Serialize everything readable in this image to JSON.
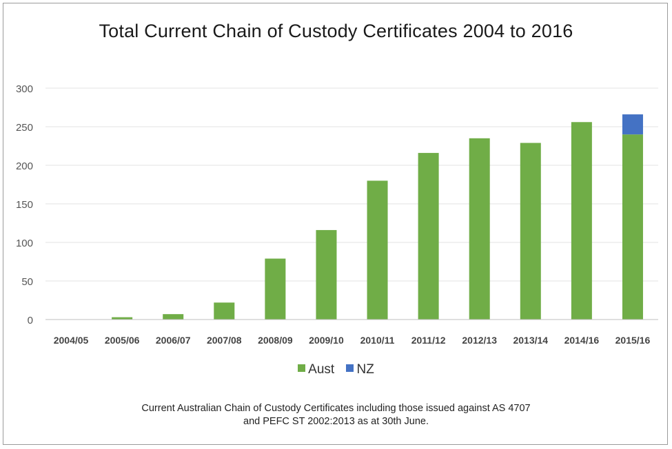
{
  "chart_data": {
    "type": "bar",
    "stacked": true,
    "title": "Total Current Chain of Custody Certificates 2004 to 2016",
    "categories": [
      "2004/05",
      "2005/06",
      "2006/07",
      "2007/08",
      "2008/09",
      "2009/10",
      "2010/11",
      "2011/12",
      "2012/13",
      "2013/14",
      "2014/16",
      "2015/16"
    ],
    "series": [
      {
        "name": "Aust",
        "color": "#70ad47",
        "values": [
          0,
          3,
          7,
          22,
          79,
          116,
          180,
          216,
          235,
          229,
          256,
          240
        ]
      },
      {
        "name": "NZ",
        "color": "#4472c4",
        "values": [
          0,
          0,
          0,
          0,
          0,
          0,
          0,
          0,
          0,
          0,
          0,
          26
        ]
      }
    ],
    "ylim": [
      0,
      300
    ],
    "yticks": [
      0,
      50,
      100,
      150,
      200,
      250,
      300
    ],
    "grid": true,
    "legend_position": "bottom"
  },
  "caption": {
    "line1": "Current Australian Chain of Custody Certificates including those issued against AS 4707",
    "line2": "and PEFC ST 2002:2013 as at 30th June."
  }
}
